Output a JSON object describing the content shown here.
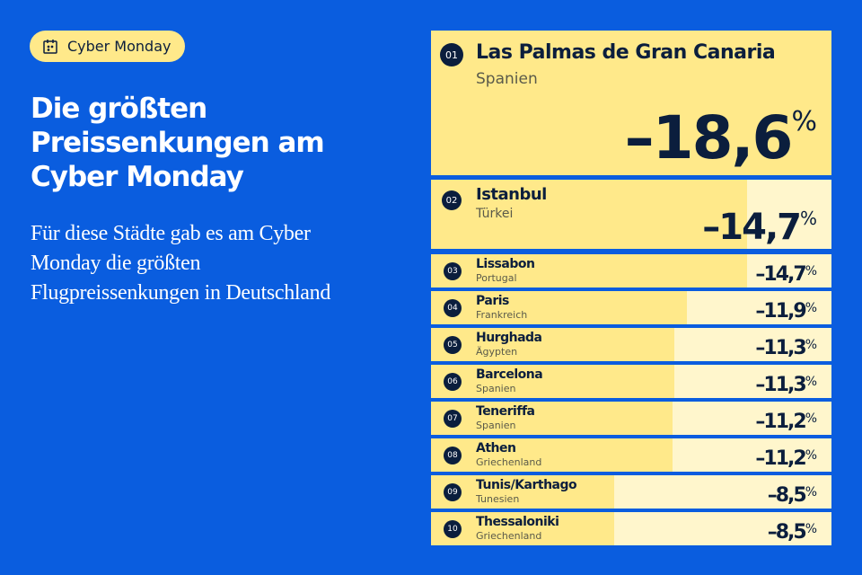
{
  "badge": {
    "label": "Cyber Monday",
    "icon": "calendar-icon"
  },
  "title": "Die größten Preissenkungen am Cyber Monday",
  "subtitle": "Für diese Städte gab es am Cyber Monday die größten Flugpreissenkungen in Deutschland",
  "colors": {
    "background": "#0a5ddf",
    "bar": "#ffe98a",
    "bar_track": "#fff6cc",
    "text": "#0b1e3d"
  },
  "ranking": [
    {
      "rank": "01",
      "city": "Las Palmas de Gran Canaria",
      "country": "Spanien",
      "value": "–18,6",
      "unit": "%",
      "drop": 18.6
    },
    {
      "rank": "02",
      "city": "Istanbul",
      "country": "Türkei",
      "value": "–14,7",
      "unit": "%",
      "drop": 14.7
    },
    {
      "rank": "03",
      "city": "Lissabon",
      "country": "Portugal",
      "value": "–14,7",
      "unit": "%",
      "drop": 14.7
    },
    {
      "rank": "04",
      "city": "Paris",
      "country": "Frankreich",
      "value": "–11,9",
      "unit": "%",
      "drop": 11.9
    },
    {
      "rank": "05",
      "city": "Hurghada",
      "country": "Ägypten",
      "value": "–11,3",
      "unit": "%",
      "drop": 11.3
    },
    {
      "rank": "06",
      "city": "Barcelona",
      "country": "Spanien",
      "value": "–11,3",
      "unit": "%",
      "drop": 11.3
    },
    {
      "rank": "07",
      "city": "Teneriffa",
      "country": "Spanien",
      "value": "–11,2",
      "unit": "%",
      "drop": 11.2
    },
    {
      "rank": "08",
      "city": "Athen",
      "country": "Griechenland",
      "value": "–11,2",
      "unit": "%",
      "drop": 11.2
    },
    {
      "rank": "09",
      "city": "Tunis/Karthago",
      "country": "Tunesien",
      "value": "–8,5",
      "unit": "%",
      "drop": 8.5
    },
    {
      "rank": "10",
      "city": "Thessaloniki",
      "country": "Griechenland",
      "value": "–8,5",
      "unit": "%",
      "drop": 8.5
    }
  ]
}
